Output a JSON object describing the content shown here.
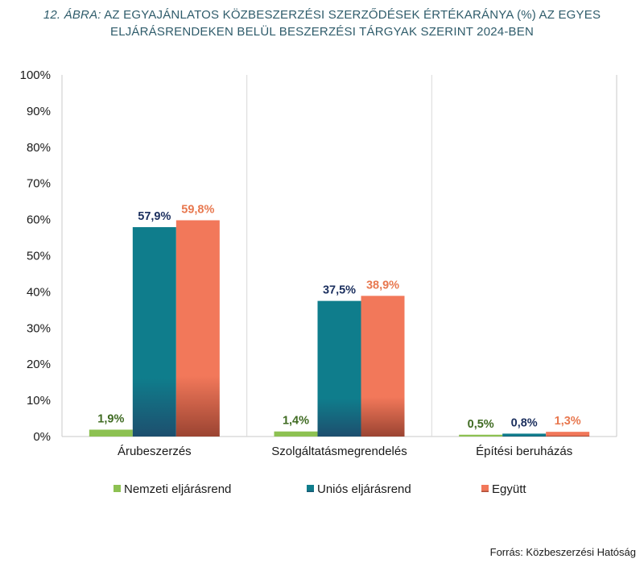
{
  "title": {
    "figure_label": "12. ÁBRA:",
    "line1_rest": "AZ EGYAJÁNLATOS KÖZBESZERZÉSI SZERZŐDÉSEK ÉRTÉKARÁNYA (%) AZ EGYES",
    "line2": "ELJÁRÁSRENDEKEN BELÜL BESZERZÉSI TÁRGYAK SZERINT 2024-BEN"
  },
  "source": "Forrás: Közbeszerzési Hatóság",
  "chart_data": {
    "type": "bar",
    "title": "12. ÁBRA: AZ EGYAJÁNLATOS KÖZBESZERZÉSI SZERZŐDÉSEK ÉRTÉKARÁNYA (%) AZ EGYES ELJÁRÁSRENDEKEN BELÜL BESZERZÉSI TÁRGYAK SZERINT 2024-BEN",
    "categories": [
      "Árubeszerzés",
      "Szolgáltatásmegrendelés",
      "Építési beruházás"
    ],
    "series": [
      {
        "name": "Nemzeti eljárásrend",
        "values": [
          1.9,
          1.4,
          0.5
        ],
        "labels": [
          "1,9%",
          "1,4%",
          "0,5%"
        ],
        "color": "#8dc152",
        "label_color": "#3f6b22"
      },
      {
        "name": "Uniós eljárásrend",
        "values": [
          57.9,
          37.5,
          0.8
        ],
        "labels": [
          "57,9%",
          "37,5%",
          "0,8%"
        ],
        "color": "#0f7d8c",
        "label_color": "#1b2f5e"
      },
      {
        "name": "Együtt",
        "values": [
          59.8,
          38.9,
          1.3
        ],
        "labels": [
          "59,8%",
          "38,9%",
          "1,3%"
        ],
        "color": "#f2785a",
        "label_color": "#e8784f"
      }
    ],
    "yticks": [
      "0%",
      "10%",
      "20%",
      "30%",
      "40%",
      "50%",
      "60%",
      "70%",
      "80%",
      "90%",
      "100%"
    ],
    "ylim": [
      0,
      100
    ],
    "xlabel": "",
    "ylabel": "",
    "grid": "vertical separators",
    "legend": "bottom"
  }
}
